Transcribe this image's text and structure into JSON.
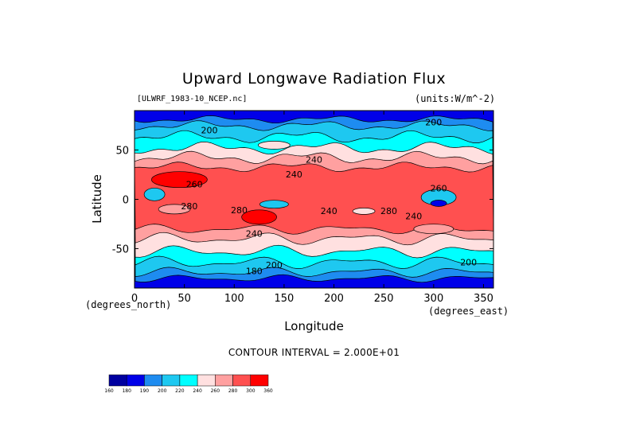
{
  "chart_data": {
    "type": "heatmap",
    "title": "Upward Longwave Radiation Flux",
    "file_label": "[ULWRF_1983-10_NCEP.nc]",
    "units_label": "(units:W/m^-2)",
    "xlabel": "Longitude",
    "ylabel": "Latitude",
    "x_unit_label": "(degrees_east)",
    "y_unit_label": "(degrees_north)",
    "xlim": [
      0,
      360
    ],
    "ylim": [
      -90,
      90
    ],
    "x_ticks": [
      0,
      50,
      100,
      150,
      200,
      250,
      300,
      350
    ],
    "y_ticks": [
      -50,
      0,
      50
    ],
    "contour_interval_text": "CONTOUR INTERVAL = 2.000E+01",
    "contour_labels": [
      "200",
      "200",
      "240",
      "240",
      "260",
      "280",
      "280",
      "240",
      "240",
      "280",
      "260",
      "240",
      "200",
      "180",
      "200"
    ],
    "colorbar": {
      "levels": [
        160,
        180,
        190,
        200,
        220,
        240,
        260,
        280,
        300,
        360
      ],
      "level_labels": [
        "160",
        "180",
        "190",
        "200",
        "220",
        "240",
        "260",
        "280",
        "300",
        "360"
      ],
      "colors": [
        "#0000a0",
        "#0000e8",
        "#1e8cf0",
        "#1ec8f0",
        "#00ffff",
        "#ffe0e0",
        "#ffa0a0",
        "#ff5050",
        "#ff0000"
      ]
    },
    "grid": false,
    "legend": "bottom-left colorbar"
  }
}
